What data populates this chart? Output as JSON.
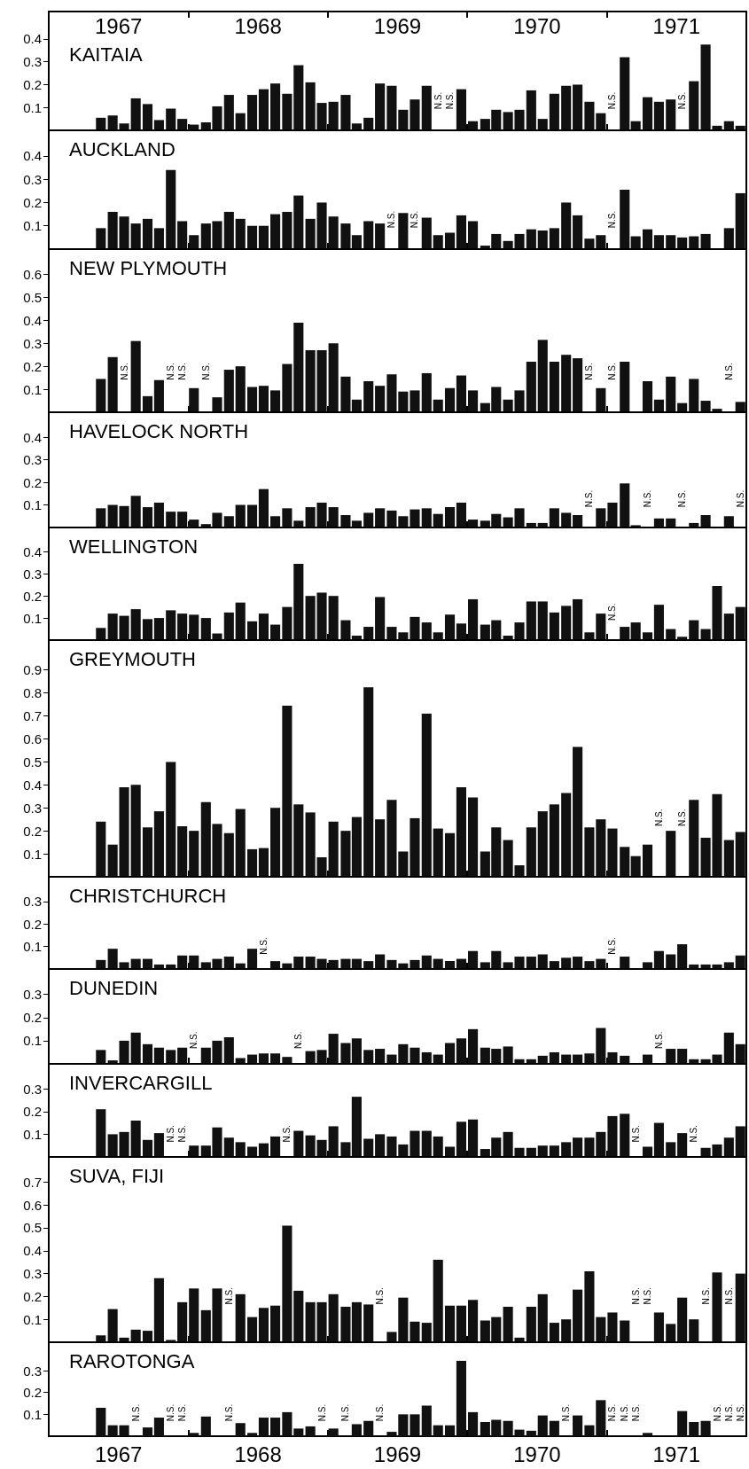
{
  "chart_data": [
    {
      "type": "bar",
      "title": "KAITAIA",
      "color": "#111111",
      "x": [
        "1967-05-16",
        "1967-06-16",
        "1967-07-16",
        "1967-08-16",
        "1967-09-16",
        "1967-10-16",
        "1967-11-16",
        "1967-12-16",
        "1968-01-16",
        "1968-02-16",
        "1968-03-16",
        "1968-04-16",
        "1968-05-16",
        "1968-06-16",
        "1968-07-16",
        "1968-08-16",
        "1968-09-16",
        "1968-10-16",
        "1968-11-16",
        "1968-12-16",
        "1969-01-16",
        "1969-02-16",
        "1969-03-16",
        "1969-04-16",
        "1969-05-16",
        "1969-06-16",
        "1969-07-16",
        "1969-08-16",
        "1969-09-16",
        "1969-10-16",
        "1969-11-16",
        "1969-12-16",
        "1970-01-16",
        "1970-02-16",
        "1970-03-16",
        "1970-04-16",
        "1970-05-16",
        "1970-06-16",
        "1970-07-16",
        "1970-08-16",
        "1970-09-16",
        "1970-10-16",
        "1970-11-16",
        "1970-12-16",
        "1971-01-16",
        "1971-02-16",
        "1971-03-16",
        "1971-04-16",
        "1971-05-16",
        "1971-06-16",
        "1971-07-16",
        "1971-08-16",
        "1971-09-16",
        "1971-10-16",
        "1971-11-16",
        "1971-12-16"
      ],
      "values": [
        0.055,
        0.065,
        0.03,
        0.14,
        0.115,
        0.045,
        0.095,
        0.05,
        0.025,
        0.035,
        0.105,
        0.155,
        0.075,
        0.155,
        0.18,
        0.205,
        0.16,
        0.285,
        0.21,
        0.12,
        0.125,
        0.155,
        0.03,
        0.055,
        0.205,
        0.195,
        0.09,
        0.135,
        0.195,
        null,
        null,
        0.18,
        0.04,
        0.05,
        0.09,
        0.08,
        0.09,
        0.175,
        0.05,
        0.16,
        0.195,
        0.2,
        0.125,
        0.075,
        null,
        0.32,
        0.04,
        0.145,
        0.125,
        0.135,
        null,
        0.215,
        0.375,
        0.02,
        0.04,
        0.02
      ],
      "xlim": [
        "1967-01",
        "1972-01"
      ],
      "xticks": [
        {
          "value": "1967-01",
          "label": null
        },
        {
          "value": "1968-01",
          "label": null
        },
        {
          "value": "1969-01",
          "label": null
        },
        {
          "value": "1970-01",
          "label": null
        },
        {
          "value": "1971-01",
          "label": null
        }
      ],
      "x2lim": [
        "1967-01",
        "1972-01"
      ],
      "x2ticks": [
        {
          "value": "1967-01",
          "label": null
        },
        {
          "value": "1967-07",
          "label": "1967"
        },
        {
          "value": "1968-01",
          "label": null
        },
        {
          "value": "1968-07",
          "label": "1968"
        },
        {
          "value": "1969-01",
          "label": null
        },
        {
          "value": "1969-07",
          "label": "1969"
        },
        {
          "value": "1970-01",
          "label": null
        },
        {
          "value": "1970-07",
          "label": "1970"
        },
        {
          "value": "1971-01",
          "label": null
        },
        {
          "value": "1971-07",
          "label": "1971"
        }
      ],
      "ylim": [
        0,
        0.52
      ],
      "yticks": [
        0.1,
        0.2,
        0.3,
        0.4
      ],
      "tick_labels": "y",
      "annotations": [
        "N.S.",
        "N.S.",
        "N.S.",
        "N.S."
      ]
    },
    {
      "type": "bar",
      "title": "AUCKLAND",
      "color": "#111111",
      "x": [
        "1967-05-16",
        "1967-06-16",
        "1967-07-16",
        "1967-08-16",
        "1967-09-16",
        "1967-10-16",
        "1967-11-16",
        "1967-12-16",
        "1968-01-16",
        "1968-02-16",
        "1968-03-16",
        "1968-04-16",
        "1968-05-16",
        "1968-06-16",
        "1968-07-16",
        "1968-08-16",
        "1968-09-16",
        "1968-10-16",
        "1968-11-16",
        "1968-12-16",
        "1969-01-16",
        "1969-02-16",
        "1969-03-16",
        "1969-04-16",
        "1969-05-16",
        "1969-06-16",
        "1969-07-16",
        "1969-08-16",
        "1969-09-16",
        "1969-10-16",
        "1969-11-16",
        "1969-12-16",
        "1970-01-16",
        "1970-02-16",
        "1970-03-16",
        "1970-04-16",
        "1970-05-16",
        "1970-06-16",
        "1970-07-16",
        "1970-08-16",
        "1970-09-16",
        "1970-10-16",
        "1970-11-16",
        "1970-12-16",
        "1971-01-16",
        "1971-02-16",
        "1971-03-16",
        "1971-04-16",
        "1971-05-16",
        "1971-06-16",
        "1971-07-16",
        "1971-08-16",
        "1971-09-16",
        "1971-10-16",
        "1971-11-16",
        "1971-12-16"
      ],
      "values": [
        0.09,
        0.16,
        0.14,
        0.11,
        0.13,
        0.09,
        0.34,
        0.12,
        0.06,
        0.11,
        0.12,
        0.16,
        0.13,
        0.1,
        0.1,
        0.15,
        0.16,
        0.23,
        0.13,
        0.2,
        0.14,
        0.11,
        0.06,
        0.12,
        0.11,
        null,
        0.155,
        null,
        0.135,
        0.06,
        0.07,
        0.145,
        0.12,
        0.015,
        0.065,
        0.035,
        0.065,
        0.085,
        0.08,
        0.09,
        0.2,
        0.145,
        0.045,
        0.06,
        null,
        0.255,
        0.055,
        0.085,
        0.06,
        0.06,
        0.05,
        0.055,
        0.065,
        0,
        0.09,
        0.24
      ],
      "xlim": [
        "1967-01",
        "1972-01"
      ],
      "xticks": [
        {
          "value": "1967-01",
          "label": null
        },
        {
          "value": "1968-01",
          "label": null
        },
        {
          "value": "1969-01",
          "label": null
        },
        {
          "value": "1970-01",
          "label": null
        },
        {
          "value": "1971-01",
          "label": null
        }
      ],
      "ylim": [
        0,
        0.51
      ],
      "yticks": [
        0.1,
        0.2,
        0.3,
        0.4
      ],
      "tick_labels": "y",
      "annotations": [
        "N.S.",
        "N.S.",
        "N.S."
      ]
    },
    {
      "type": "bar",
      "title": "NEW PLYMOUTH",
      "color": "#111111",
      "x": [
        "1967-05-16",
        "1967-06-16",
        "1967-07-16",
        "1967-08-16",
        "1967-09-16",
        "1967-10-16",
        "1967-11-16",
        "1967-12-16",
        "1968-01-16",
        "1968-02-16",
        "1968-03-16",
        "1968-04-16",
        "1968-05-16",
        "1968-06-16",
        "1968-07-16",
        "1968-08-16",
        "1968-09-16",
        "1968-10-16",
        "1968-11-16",
        "1968-12-16",
        "1969-01-16",
        "1969-02-16",
        "1969-03-16",
        "1969-04-16",
        "1969-05-16",
        "1969-06-16",
        "1969-07-16",
        "1969-08-16",
        "1969-09-16",
        "1969-10-16",
        "1969-11-16",
        "1969-12-16",
        "1970-01-16",
        "1970-02-16",
        "1970-03-16",
        "1970-04-16",
        "1970-05-16",
        "1970-06-16",
        "1970-07-16",
        "1970-08-16",
        "1970-09-16",
        "1970-10-16",
        "1970-11-16",
        "1970-12-16",
        "1971-01-16",
        "1971-02-16",
        "1971-03-16",
        "1971-04-16",
        "1971-05-16",
        "1971-06-16",
        "1971-07-16",
        "1971-08-16",
        "1971-09-16",
        "1971-10-16",
        "1971-11-16",
        "1971-12-16"
      ],
      "values": [
        0.145,
        0.24,
        null,
        0.31,
        0.07,
        0.14,
        null,
        null,
        0.105,
        null,
        0.065,
        0.185,
        0.2,
        0.11,
        0.115,
        0.095,
        0.21,
        0.39,
        0.27,
        0.27,
        0.3,
        0.155,
        0.055,
        0.135,
        0.115,
        0.165,
        0.09,
        0.095,
        0.17,
        0.055,
        0.105,
        0.16,
        0.095,
        0.04,
        0.11,
        0.055,
        0.095,
        0.22,
        0.315,
        0.22,
        0.25,
        0.235,
        null,
        0.105,
        null,
        0.22,
        0,
        0.135,
        0.055,
        0.155,
        0.04,
        0.145,
        0.05,
        0.015,
        null,
        0.045
      ],
      "xlim": [
        "1967-01",
        "1972-01"
      ],
      "xticks": [
        {
          "value": "1967-01",
          "label": null
        },
        {
          "value": "1968-01",
          "label": null
        },
        {
          "value": "1969-01",
          "label": null
        },
        {
          "value": "1970-01",
          "label": null
        },
        {
          "value": "1971-01",
          "label": null
        }
      ],
      "ylim": [
        0,
        0.71
      ],
      "yticks": [
        0.1,
        0.2,
        0.3,
        0.4,
        0.5,
        0.6
      ],
      "tick_labels": "y",
      "annotations": [
        "N.S.",
        "N.S.",
        "N.S.",
        "N.S.",
        "N.S.",
        "N.S.",
        "N.S."
      ]
    },
    {
      "type": "bar",
      "title": "HAVELOCK NORTH",
      "color": "#111111",
      "x": [
        "1967-05-16",
        "1967-06-16",
        "1967-07-16",
        "1967-08-16",
        "1967-09-16",
        "1967-10-16",
        "1967-11-16",
        "1967-12-16",
        "1968-01-16",
        "1968-02-16",
        "1968-03-16",
        "1968-04-16",
        "1968-05-16",
        "1968-06-16",
        "1968-07-16",
        "1968-08-16",
        "1968-09-16",
        "1968-10-16",
        "1968-11-16",
        "1968-12-16",
        "1969-01-16",
        "1969-02-16",
        "1969-03-16",
        "1969-04-16",
        "1969-05-16",
        "1969-06-16",
        "1969-07-16",
        "1969-08-16",
        "1969-09-16",
        "1969-10-16",
        "1969-11-16",
        "1969-12-16",
        "1970-01-16",
        "1970-02-16",
        "1970-03-16",
        "1970-04-16",
        "1970-05-16",
        "1970-06-16",
        "1970-07-16",
        "1970-08-16",
        "1970-09-16",
        "1970-10-16",
        "1970-11-16",
        "1970-12-16",
        "1971-01-16",
        "1971-02-16",
        "1971-03-16",
        "1971-04-16",
        "1971-05-16",
        "1971-06-16",
        "1971-07-16",
        "1971-08-16",
        "1971-09-16",
        "1971-10-16",
        "1971-11-16"
      ],
      "values": [
        0.085,
        0.1,
        0.095,
        0.14,
        0.09,
        0.11,
        0.07,
        0.07,
        0.035,
        0.015,
        0.065,
        0.05,
        0.1,
        0.1,
        0.17,
        0.05,
        0.085,
        0.03,
        0.09,
        0.11,
        0.09,
        0.055,
        0.03,
        0.065,
        0.085,
        0.075,
        0.05,
        0.08,
        0.085,
        0.06,
        0.09,
        0.11,
        0.035,
        0.03,
        0.06,
        0.045,
        0.085,
        0.02,
        0.02,
        0.085,
        0.065,
        0.055,
        null,
        0.085,
        0.11,
        0.195,
        0.01,
        null,
        0.04,
        0.04,
        null,
        0.02,
        0.055,
        0,
        0.05
      ],
      "xlim": [
        "1967-01",
        "1972-01"
      ],
      "xticks": [
        {
          "value": "1967-01",
          "label": null
        },
        {
          "value": "1968-01",
          "label": null
        },
        {
          "value": "1969-01",
          "label": null
        },
        {
          "value": "1970-01",
          "label": null
        },
        {
          "value": "1971-01",
          "label": null
        }
      ],
      "ylim": [
        0,
        0.51
      ],
      "yticks": [
        0.1,
        0.2,
        0.3,
        0.4
      ],
      "tick_labels": "y",
      "annotations": [
        "N.S.",
        "N.S.",
        "N.S.",
        "N.S."
      ]
    },
    {
      "type": "bar",
      "title": "WELLINGTON",
      "color": "#111111",
      "x": [
        "1967-05-16",
        "1967-06-16",
        "1967-07-16",
        "1967-08-16",
        "1967-09-16",
        "1967-10-16",
        "1967-11-16",
        "1967-12-16",
        "1968-01-16",
        "1968-02-16",
        "1968-03-16",
        "1968-04-16",
        "1968-05-16",
        "1968-06-16",
        "1968-07-16",
        "1968-08-16",
        "1968-09-16",
        "1968-10-16",
        "1968-11-16",
        "1968-12-16",
        "1969-01-16",
        "1969-02-16",
        "1969-03-16",
        "1969-04-16",
        "1969-05-16",
        "1969-06-16",
        "1969-07-16",
        "1969-08-16",
        "1969-09-16",
        "1969-10-16",
        "1969-11-16",
        "1969-12-16",
        "1970-01-16",
        "1970-02-16",
        "1970-03-16",
        "1970-04-16",
        "1970-05-16",
        "1970-06-16",
        "1970-07-16",
        "1970-08-16",
        "1970-09-16",
        "1970-10-16",
        "1970-11-16",
        "1970-12-16",
        "1971-01-16",
        "1971-02-16",
        "1971-03-16",
        "1971-04-16",
        "1971-05-16",
        "1971-06-16",
        "1971-07-16",
        "1971-08-16",
        "1971-09-16",
        "1971-10-16",
        "1971-11-16",
        "1971-12-16"
      ],
      "values": [
        0.055,
        0.12,
        0.11,
        0.14,
        0.095,
        0.1,
        0.135,
        0.12,
        0.115,
        0.1,
        0.03,
        0.125,
        0.17,
        0.085,
        0.12,
        0.07,
        0.15,
        0.345,
        0.2,
        0.215,
        0.2,
        0.09,
        0.02,
        0.06,
        0.195,
        0.06,
        0.035,
        0.105,
        0.08,
        0.035,
        0.115,
        0.075,
        0.185,
        0.07,
        0.09,
        0.02,
        0.08,
        0.175,
        0.175,
        0.125,
        0.155,
        0.185,
        0.035,
        0.12,
        null,
        0.06,
        0.08,
        0.035,
        0.16,
        0.05,
        0.015,
        0.09,
        0.05,
        0.245,
        0.12,
        0.15
      ],
      "xlim": [
        "1967-01",
        "1972-01"
      ],
      "xticks": [
        {
          "value": "1967-01",
          "label": null
        },
        {
          "value": "1968-01",
          "label": null
        },
        {
          "value": "1969-01",
          "label": null
        },
        {
          "value": "1970-01",
          "label": null
        },
        {
          "value": "1971-01",
          "label": null
        }
      ],
      "ylim": [
        0,
        0.51
      ],
      "yticks": [
        0.1,
        0.2,
        0.3,
        0.4
      ],
      "tick_labels": "y",
      "annotations": [
        "N.S."
      ]
    },
    {
      "type": "bar",
      "title": "GREYMOUTH",
      "color": "#111111",
      "x": [
        "1967-05-16",
        "1967-06-16",
        "1967-07-16",
        "1967-08-16",
        "1967-09-16",
        "1967-10-16",
        "1967-11-16",
        "1967-12-16",
        "1968-01-16",
        "1968-02-16",
        "1968-03-16",
        "1968-04-16",
        "1968-05-16",
        "1968-06-16",
        "1968-07-16",
        "1968-08-16",
        "1968-09-16",
        "1968-10-16",
        "1968-11-16",
        "1968-12-16",
        "1969-01-16",
        "1969-02-16",
        "1969-03-16",
        "1969-04-16",
        "1969-05-16",
        "1969-06-16",
        "1969-07-16",
        "1969-08-16",
        "1969-09-16",
        "1969-10-16",
        "1969-11-16",
        "1969-12-16",
        "1970-01-16",
        "1970-02-16",
        "1970-03-16",
        "1970-04-16",
        "1970-05-16",
        "1970-06-16",
        "1970-07-16",
        "1970-08-16",
        "1970-09-16",
        "1970-10-16",
        "1970-11-16",
        "1970-12-16",
        "1971-01-16",
        "1971-02-16",
        "1971-03-16",
        "1971-04-16",
        "1971-05-16",
        "1971-06-16",
        "1971-07-16",
        "1971-08-16",
        "1971-09-16",
        "1971-10-16",
        "1971-11-16",
        "1971-12-16"
      ],
      "values": [
        0.24,
        0.14,
        0.39,
        0.4,
        0.215,
        0.285,
        0.5,
        0.22,
        0.2,
        0.325,
        0.23,
        0.19,
        0.295,
        0.12,
        0.125,
        0.3,
        0.745,
        0.315,
        0.28,
        0.085,
        0.24,
        0.2,
        0.26,
        0.825,
        0.25,
        0.335,
        0.11,
        0.255,
        0.71,
        0.21,
        0.19,
        0.39,
        0.345,
        0.11,
        0.215,
        0.16,
        0.05,
        0.215,
        0.285,
        0.315,
        0.365,
        0.565,
        0.215,
        0.25,
        0.21,
        0.13,
        0.09,
        0.14,
        null,
        0.2,
        null,
        0.335,
        0.17,
        0.36,
        0.16,
        0.195
      ],
      "xlim": [
        "1967-01",
        "1972-01"
      ],
      "xticks": [
        {
          "value": "1967-01",
          "label": null
        },
        {
          "value": "1968-01",
          "label": null
        },
        {
          "value": "1969-01",
          "label": null
        },
        {
          "value": "1970-01",
          "label": null
        },
        {
          "value": "1971-01",
          "label": null
        }
      ],
      "ylim": [
        0,
        1.03
      ],
      "yticks": [
        0.1,
        0.2,
        0.3,
        0.4,
        0.5,
        0.6,
        0.7,
        0.8,
        0.9
      ],
      "tick_labels": "y",
      "annotations": [
        "N.S.",
        "N.S."
      ]
    },
    {
      "type": "bar",
      "title": "CHRISTCHURCH",
      "color": "#111111",
      "x": [
        "1967-05-16",
        "1967-06-16",
        "1967-07-16",
        "1967-08-16",
        "1967-09-16",
        "1967-10-16",
        "1967-11-16",
        "1967-12-16",
        "1968-01-16",
        "1968-02-16",
        "1968-03-16",
        "1968-04-16",
        "1968-05-16",
        "1968-06-16",
        "1968-07-16",
        "1968-08-16",
        "1968-09-16",
        "1968-10-16",
        "1968-11-16",
        "1968-12-16",
        "1969-01-16",
        "1969-02-16",
        "1969-03-16",
        "1969-04-16",
        "1969-05-16",
        "1969-06-16",
        "1969-07-16",
        "1969-08-16",
        "1969-09-16",
        "1969-10-16",
        "1969-11-16",
        "1969-12-16",
        "1970-01-16",
        "1970-02-16",
        "1970-03-16",
        "1970-04-16",
        "1970-05-16",
        "1970-06-16",
        "1970-07-16",
        "1970-08-16",
        "1970-09-16",
        "1970-10-16",
        "1970-11-16",
        "1970-12-16",
        "1971-01-16",
        "1971-02-16",
        "1971-03-16",
        "1971-04-16",
        "1971-05-16",
        "1971-06-16",
        "1971-07-16",
        "1971-08-16",
        "1971-09-16",
        "1971-10-16",
        "1971-11-16",
        "1971-12-16"
      ],
      "values": [
        0.04,
        0.09,
        0.03,
        0.045,
        0.045,
        0.02,
        0.02,
        0.06,
        0.06,
        0.03,
        0.045,
        0.055,
        0.025,
        0.09,
        null,
        0.035,
        0.025,
        0.055,
        0.055,
        0.045,
        0.04,
        0.045,
        0.045,
        0.035,
        0.065,
        0.04,
        0.025,
        0.04,
        0.06,
        0.045,
        0.035,
        0.045,
        0.08,
        0.03,
        0.08,
        0.03,
        0.055,
        0.055,
        0.065,
        0.035,
        0.05,
        0.055,
        0.035,
        0.045,
        null,
        0.055,
        0,
        0.03,
        0.08,
        0.065,
        0.11,
        0.02,
        0.02,
        0.02,
        0.03,
        0.06
      ],
      "xlim": [
        "1967-01",
        "1972-01"
      ],
      "xticks": [
        {
          "value": "1967-01",
          "label": null
        },
        {
          "value": "1968-01",
          "label": null
        },
        {
          "value": "1969-01",
          "label": null
        },
        {
          "value": "1970-01",
          "label": null
        },
        {
          "value": "1971-01",
          "label": null
        }
      ],
      "ylim": [
        0,
        0.41
      ],
      "yticks": [
        0.1,
        0.2,
        0.3
      ],
      "tick_labels": "y",
      "annotations": [
        "N.S.",
        "N.S."
      ]
    },
    {
      "type": "bar",
      "title": "DUNEDIN",
      "color": "#111111",
      "x": [
        "1967-05-16",
        "1967-06-16",
        "1967-07-16",
        "1967-08-16",
        "1967-09-16",
        "1967-10-16",
        "1967-11-16",
        "1967-12-16",
        "1968-01-16",
        "1968-02-16",
        "1968-03-16",
        "1968-04-16",
        "1968-05-16",
        "1968-06-16",
        "1968-07-16",
        "1968-08-16",
        "1968-09-16",
        "1968-10-16",
        "1968-11-16",
        "1968-12-16",
        "1969-01-16",
        "1969-02-16",
        "1969-03-16",
        "1969-04-16",
        "1969-05-16",
        "1969-06-16",
        "1969-07-16",
        "1969-08-16",
        "1969-09-16",
        "1969-10-16",
        "1969-11-16",
        "1969-12-16",
        "1970-01-16",
        "1970-02-16",
        "1970-03-16",
        "1970-04-16",
        "1970-05-16",
        "1970-06-16",
        "1970-07-16",
        "1970-08-16",
        "1970-09-16",
        "1970-10-16",
        "1970-11-16",
        "1970-12-16",
        "1971-01-16",
        "1971-02-16",
        "1971-03-16",
        "1971-04-16",
        "1971-05-16",
        "1971-06-16",
        "1971-07-16",
        "1971-08-16",
        "1971-09-16",
        "1971-10-16",
        "1971-11-16",
        "1971-12-16"
      ],
      "values": [
        0.06,
        0.015,
        0.1,
        0.135,
        0.085,
        0.07,
        0.06,
        0.07,
        null,
        0.07,
        0.1,
        0.115,
        0.025,
        0.04,
        0.045,
        0.045,
        0.03,
        null,
        0.055,
        0.06,
        0.13,
        0.09,
        0.11,
        0.06,
        0.065,
        0.04,
        0.085,
        0.07,
        0.05,
        0.04,
        0.09,
        0.11,
        0.15,
        0.07,
        0.065,
        0.075,
        0.02,
        0.02,
        0.035,
        0.05,
        0.04,
        0.04,
        0.045,
        0.155,
        0.05,
        0.035,
        0,
        0.04,
        null,
        0.065,
        0.065,
        0.02,
        0.02,
        0.04,
        0.135,
        0.085
      ],
      "xlim": [
        "1967-01",
        "1972-01"
      ],
      "xticks": [
        {
          "value": "1967-01",
          "label": null
        },
        {
          "value": "1968-01",
          "label": null
        },
        {
          "value": "1969-01",
          "label": null
        },
        {
          "value": "1970-01",
          "label": null
        },
        {
          "value": "1971-01",
          "label": null
        }
      ],
      "ylim": [
        0,
        0.41
      ],
      "yticks": [
        0.1,
        0.2,
        0.3
      ],
      "tick_labels": "y",
      "annotations": [
        "N.S.",
        "N.S.",
        "N.S."
      ]
    },
    {
      "type": "bar",
      "title": "INVERCARGILL",
      "color": "#111111",
      "x": [
        "1967-05-16",
        "1967-06-16",
        "1967-07-16",
        "1967-08-16",
        "1967-09-16",
        "1967-10-16",
        "1967-11-16",
        "1967-12-16",
        "1968-01-16",
        "1968-02-16",
        "1968-03-16",
        "1968-04-16",
        "1968-05-16",
        "1968-06-16",
        "1968-07-16",
        "1968-08-16",
        "1968-09-16",
        "1968-10-16",
        "1968-11-16",
        "1968-12-16",
        "1969-01-16",
        "1969-02-16",
        "1969-03-16",
        "1969-04-16",
        "1969-05-16",
        "1969-06-16",
        "1969-07-16",
        "1969-08-16",
        "1969-09-16",
        "1969-10-16",
        "1969-11-16",
        "1969-12-16",
        "1970-01-16",
        "1970-02-16",
        "1970-03-16",
        "1970-04-16",
        "1970-05-16",
        "1970-06-16",
        "1970-07-16",
        "1970-08-16",
        "1970-09-16",
        "1970-10-16",
        "1970-11-16",
        "1970-12-16",
        "1971-01-16",
        "1971-02-16",
        "1971-03-16",
        "1971-04-16",
        "1971-05-16",
        "1971-06-16",
        "1971-07-16",
        "1971-08-16",
        "1971-09-16",
        "1971-10-16",
        "1971-11-16",
        "1971-12-16"
      ],
      "values": [
        0.21,
        0.1,
        0.11,
        0.16,
        0.075,
        0.105,
        null,
        null,
        0.05,
        0.05,
        0.13,
        0.085,
        0.065,
        0.045,
        0.06,
        0.09,
        null,
        0.115,
        0.095,
        0.075,
        0.135,
        0.065,
        0.265,
        0.08,
        0.1,
        0.09,
        0.055,
        0.115,
        0.115,
        0.09,
        0.045,
        0.155,
        0.165,
        0.035,
        0.085,
        0.11,
        0.04,
        0.04,
        0.05,
        0.05,
        0.065,
        0.085,
        0.085,
        0.11,
        0.18,
        0.19,
        null,
        0.045,
        0.15,
        0.065,
        0.105,
        null,
        0.04,
        0.055,
        0.085,
        0.135
      ],
      "xlim": [
        "1967-01",
        "1972-01"
      ],
      "xticks": [
        {
          "value": "1967-01",
          "label": null
        },
        {
          "value": "1968-01",
          "label": null
        },
        {
          "value": "1969-01",
          "label": null
        },
        {
          "value": "1970-01",
          "label": null
        },
        {
          "value": "1971-01",
          "label": null
        }
      ],
      "ylim": [
        0,
        0.41
      ],
      "yticks": [
        0.1,
        0.2,
        0.3
      ],
      "tick_labels": "y",
      "annotations": [
        "N.S.",
        "N.S.",
        "N.S.",
        "N.S.",
        "N.S."
      ]
    },
    {
      "type": "bar",
      "title": "SUVA, FIJI",
      "color": "#111111",
      "x": [
        "1967-05-16",
        "1967-06-16",
        "1967-07-16",
        "1967-08-16",
        "1967-09-16",
        "1967-10-16",
        "1967-11-16",
        "1967-12-16",
        "1968-01-16",
        "1968-02-16",
        "1968-03-16",
        "1968-04-16",
        "1968-05-16",
        "1968-06-16",
        "1968-07-16",
        "1968-08-16",
        "1968-09-16",
        "1968-10-16",
        "1968-11-16",
        "1968-12-16",
        "1969-01-16",
        "1969-02-16",
        "1969-03-16",
        "1969-04-16",
        "1969-05-16",
        "1969-06-16",
        "1969-07-16",
        "1969-08-16",
        "1969-09-16",
        "1969-10-16",
        "1969-11-16",
        "1969-12-16",
        "1970-01-16",
        "1970-02-16",
        "1970-03-16",
        "1970-04-16",
        "1970-05-16",
        "1970-06-16",
        "1970-07-16",
        "1970-08-16",
        "1970-09-16",
        "1970-10-16",
        "1970-11-16",
        "1970-12-16",
        "1971-01-16",
        "1971-02-16",
        "1971-03-16",
        "1971-04-16",
        "1971-05-16",
        "1971-06-16",
        "1971-07-16",
        "1971-08-16",
        "1971-09-16",
        "1971-10-16",
        "1971-11-16",
        "1971-12-16"
      ],
      "values": [
        0.03,
        0.145,
        0.02,
        0.055,
        0.05,
        0.28,
        0.01,
        0.175,
        0.235,
        0.14,
        0.235,
        null,
        0.21,
        0.11,
        0.15,
        0.16,
        0.51,
        0.225,
        0.175,
        0.175,
        0.21,
        0.155,
        0.175,
        0.165,
        null,
        0.045,
        0.195,
        0.09,
        0.085,
        0.36,
        0.16,
        0.16,
        0.185,
        0.095,
        0.11,
        0.155,
        0.02,
        0.155,
        0.21,
        0.085,
        0.1,
        0.23,
        0.31,
        0.11,
        0.13,
        0.095,
        null,
        null,
        0.13,
        0.08,
        0.195,
        0.1,
        null,
        0.305,
        null,
        0.3
      ],
      "xlim": [
        "1967-01",
        "1972-01"
      ],
      "xticks": [
        {
          "value": "1967-01",
          "label": null
        },
        {
          "value": "1968-01",
          "label": null
        },
        {
          "value": "1969-01",
          "label": null
        },
        {
          "value": "1970-01",
          "label": null
        },
        {
          "value": "1971-01",
          "label": null
        }
      ],
      "ylim": [
        0,
        0.81
      ],
      "yticks": [
        0.1,
        0.2,
        0.3,
        0.4,
        0.5,
        0.6,
        0.7
      ],
      "tick_labels": "y",
      "annotations": [
        "N.S.",
        "N.S.",
        "N.S.",
        "N.S.",
        "N.S.",
        "N.S."
      ]
    },
    {
      "type": "bar",
      "title": "RAROTONGA",
      "color": "#111111",
      "x": [
        "1967-05-16",
        "1967-06-16",
        "1967-07-16",
        "1967-08-16",
        "1967-09-16",
        "1967-10-16",
        "1967-11-16",
        "1967-12-16",
        "1968-01-16",
        "1968-02-16",
        "1968-03-16",
        "1968-04-16",
        "1968-05-16",
        "1968-06-16",
        "1968-07-16",
        "1968-08-16",
        "1968-09-16",
        "1968-10-16",
        "1968-11-16",
        "1968-12-16",
        "1969-01-16",
        "1969-02-16",
        "1969-03-16",
        "1969-04-16",
        "1969-05-16",
        "1969-06-16",
        "1969-07-16",
        "1969-08-16",
        "1969-09-16",
        "1969-10-16",
        "1969-11-16",
        "1969-12-16",
        "1970-01-16",
        "1970-02-16",
        "1970-03-16",
        "1970-04-16",
        "1970-05-16",
        "1970-06-16",
        "1970-07-16",
        "1970-08-16",
        "1970-09-16",
        "1970-10-16",
        "1970-11-16",
        "1970-12-16",
        "1971-01-16",
        "1971-02-16",
        "1971-03-16",
        "1971-04-16",
        "1971-05-16",
        "1971-06-16",
        "1971-07-16",
        "1971-08-16",
        "1971-09-16"
      ],
      "values": [
        0.13,
        0.05,
        0.05,
        null,
        0.04,
        0.085,
        null,
        null,
        0.015,
        0.09,
        0,
        null,
        0.06,
        0.015,
        0.085,
        0.085,
        0.11,
        0.035,
        0.045,
        null,
        0.035,
        null,
        0.055,
        0.07,
        null,
        0.02,
        0.1,
        0.1,
        0.14,
        0.05,
        0.05,
        0.345,
        0.11,
        0.065,
        0.075,
        0.07,
        0.03,
        0.025,
        0.095,
        0.07,
        null,
        0.095,
        0.05,
        0.165,
        null,
        null,
        null,
        0.015,
        0,
        0,
        0.115,
        0.065,
        0.07
      ],
      "xlim": [
        "1967-01",
        "1972-01"
      ],
      "xticks": [
        {
          "value": "1967-01",
          "label": null
        },
        {
          "value": "1967-07",
          "label": "1967"
        },
        {
          "value": "1968-01",
          "label": null
        },
        {
          "value": "1968-07",
          "label": "1968"
        },
        {
          "value": "1969-01",
          "label": null
        },
        {
          "value": "1969-07",
          "label": "1969"
        },
        {
          "value": "1970-01",
          "label": null
        },
        {
          "value": "1970-07",
          "label": "1970"
        },
        {
          "value": "1971-01",
          "label": null
        },
        {
          "value": "1971-07",
          "label": "1971"
        }
      ],
      "ylim": [
        0,
        0.43
      ],
      "yticks": [
        0.1,
        0.2,
        0.3
      ],
      "annotations": [
        "N.S.",
        "N.S.",
        "N.S.",
        "N.S.",
        "N.S.",
        "N.S.",
        "N.S.",
        "N.S.",
        "N.S.",
        "N.S.",
        "N.S.",
        "N.S.",
        "N.S.",
        "N.S."
      ]
    }
  ]
}
